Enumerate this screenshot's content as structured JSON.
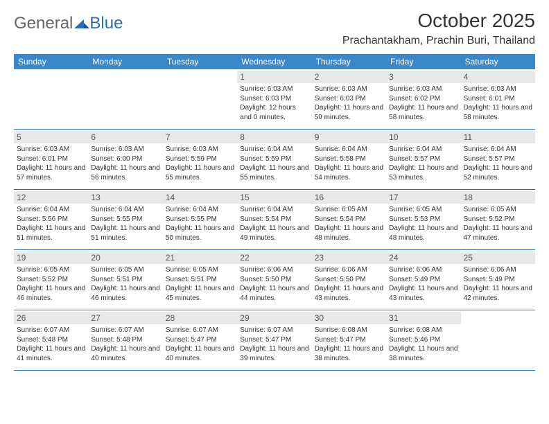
{
  "brand": {
    "general": "General",
    "blue": "Blue"
  },
  "header": {
    "month_title": "October 2025",
    "location": "Prachantakham, Prachin Buri, Thailand"
  },
  "colors": {
    "header_bar": "#3a88c9",
    "row_border": "#2a6db5",
    "daynum_bg": "#e8e8e8",
    "text": "#333333",
    "logo_blue": "#2a6db5",
    "logo_gray": "#666666",
    "background": "#ffffff"
  },
  "font": {
    "title_size_pt": 21,
    "location_size_pt": 12,
    "dow_size_pt": 9,
    "body_size_pt": 7.5
  },
  "days_of_week": [
    "Sunday",
    "Monday",
    "Tuesday",
    "Wednesday",
    "Thursday",
    "Friday",
    "Saturday"
  ],
  "weeks": [
    [
      {
        "empty": true
      },
      {
        "empty": true
      },
      {
        "empty": true
      },
      {
        "num": "1",
        "sunrise": "6:03 AM",
        "sunset": "6:03 PM",
        "daylight": "12 hours and 0 minutes."
      },
      {
        "num": "2",
        "sunrise": "6:03 AM",
        "sunset": "6:03 PM",
        "daylight": "11 hours and 59 minutes."
      },
      {
        "num": "3",
        "sunrise": "6:03 AM",
        "sunset": "6:02 PM",
        "daylight": "11 hours and 58 minutes."
      },
      {
        "num": "4",
        "sunrise": "6:03 AM",
        "sunset": "6:01 PM",
        "daylight": "11 hours and 58 minutes."
      }
    ],
    [
      {
        "num": "5",
        "sunrise": "6:03 AM",
        "sunset": "6:01 PM",
        "daylight": "11 hours and 57 minutes."
      },
      {
        "num": "6",
        "sunrise": "6:03 AM",
        "sunset": "6:00 PM",
        "daylight": "11 hours and 56 minutes."
      },
      {
        "num": "7",
        "sunrise": "6:03 AM",
        "sunset": "5:59 PM",
        "daylight": "11 hours and 55 minutes."
      },
      {
        "num": "8",
        "sunrise": "6:04 AM",
        "sunset": "5:59 PM",
        "daylight": "11 hours and 55 minutes."
      },
      {
        "num": "9",
        "sunrise": "6:04 AM",
        "sunset": "5:58 PM",
        "daylight": "11 hours and 54 minutes."
      },
      {
        "num": "10",
        "sunrise": "6:04 AM",
        "sunset": "5:57 PM",
        "daylight": "11 hours and 53 minutes."
      },
      {
        "num": "11",
        "sunrise": "6:04 AM",
        "sunset": "5:57 PM",
        "daylight": "11 hours and 52 minutes."
      }
    ],
    [
      {
        "num": "12",
        "sunrise": "6:04 AM",
        "sunset": "5:56 PM",
        "daylight": "11 hours and 51 minutes."
      },
      {
        "num": "13",
        "sunrise": "6:04 AM",
        "sunset": "5:55 PM",
        "daylight": "11 hours and 51 minutes."
      },
      {
        "num": "14",
        "sunrise": "6:04 AM",
        "sunset": "5:55 PM",
        "daylight": "11 hours and 50 minutes."
      },
      {
        "num": "15",
        "sunrise": "6:04 AM",
        "sunset": "5:54 PM",
        "daylight": "11 hours and 49 minutes."
      },
      {
        "num": "16",
        "sunrise": "6:05 AM",
        "sunset": "5:54 PM",
        "daylight": "11 hours and 48 minutes."
      },
      {
        "num": "17",
        "sunrise": "6:05 AM",
        "sunset": "5:53 PM",
        "daylight": "11 hours and 48 minutes."
      },
      {
        "num": "18",
        "sunrise": "6:05 AM",
        "sunset": "5:52 PM",
        "daylight": "11 hours and 47 minutes."
      }
    ],
    [
      {
        "num": "19",
        "sunrise": "6:05 AM",
        "sunset": "5:52 PM",
        "daylight": "11 hours and 46 minutes."
      },
      {
        "num": "20",
        "sunrise": "6:05 AM",
        "sunset": "5:51 PM",
        "daylight": "11 hours and 46 minutes."
      },
      {
        "num": "21",
        "sunrise": "6:05 AM",
        "sunset": "5:51 PM",
        "daylight": "11 hours and 45 minutes."
      },
      {
        "num": "22",
        "sunrise": "6:06 AM",
        "sunset": "5:50 PM",
        "daylight": "11 hours and 44 minutes."
      },
      {
        "num": "23",
        "sunrise": "6:06 AM",
        "sunset": "5:50 PM",
        "daylight": "11 hours and 43 minutes."
      },
      {
        "num": "24",
        "sunrise": "6:06 AM",
        "sunset": "5:49 PM",
        "daylight": "11 hours and 43 minutes."
      },
      {
        "num": "25",
        "sunrise": "6:06 AM",
        "sunset": "5:49 PM",
        "daylight": "11 hours and 42 minutes."
      }
    ],
    [
      {
        "num": "26",
        "sunrise": "6:07 AM",
        "sunset": "5:48 PM",
        "daylight": "11 hours and 41 minutes."
      },
      {
        "num": "27",
        "sunrise": "6:07 AM",
        "sunset": "5:48 PM",
        "daylight": "11 hours and 40 minutes."
      },
      {
        "num": "28",
        "sunrise": "6:07 AM",
        "sunset": "5:47 PM",
        "daylight": "11 hours and 40 minutes."
      },
      {
        "num": "29",
        "sunrise": "6:07 AM",
        "sunset": "5:47 PM",
        "daylight": "11 hours and 39 minutes."
      },
      {
        "num": "30",
        "sunrise": "6:08 AM",
        "sunset": "5:47 PM",
        "daylight": "11 hours and 38 minutes."
      },
      {
        "num": "31",
        "sunrise": "6:08 AM",
        "sunset": "5:46 PM",
        "daylight": "11 hours and 38 minutes."
      },
      {
        "empty": true
      }
    ]
  ],
  "labels": {
    "sunrise_prefix": "Sunrise: ",
    "sunset_prefix": "Sunset: ",
    "daylight_prefix": "Daylight: "
  }
}
